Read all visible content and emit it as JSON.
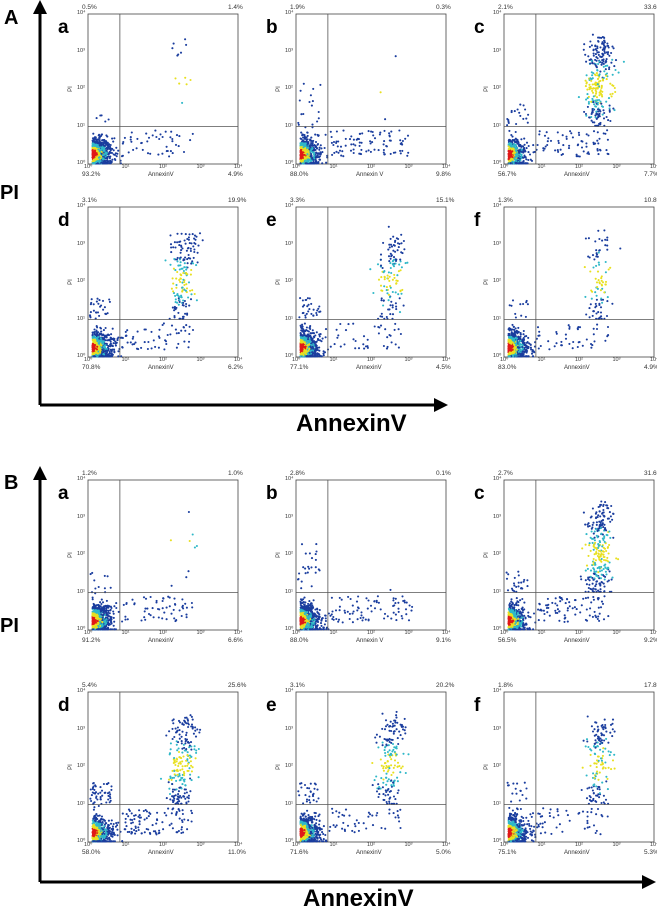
{
  "sections": [
    {
      "label": "A",
      "ylabel": "PI",
      "xlabel": "AnnexinV",
      "panels": [
        {
          "letter": "a",
          "ul": "0.5%",
          "ur": "1.4%",
          "ll": "93.2%",
          "lr": "4.9%",
          "xlabel": "AnnexinV"
        },
        {
          "letter": "b",
          "ul": "1.9%",
          "ur": "0.3%",
          "ll": "88.0%",
          "lr": "9.8%",
          "xlabel": "Annexin V"
        },
        {
          "letter": "c",
          "ul": "2.1%",
          "ur": "33.6%",
          "ll": "56.7%",
          "lr": "7.7%",
          "xlabel": "AnnexinV"
        },
        {
          "letter": "d",
          "ul": "3.1%",
          "ur": "19.9%",
          "ll": "70.8%",
          "lr": "6.2%",
          "xlabel": "AnnexinV"
        },
        {
          "letter": "e",
          "ul": "3.3%",
          "ur": "15.1%",
          "ll": "77.1%",
          "lr": "4.5%",
          "xlabel": "AnnexinV"
        },
        {
          "letter": "f",
          "ul": "1.3%",
          "ur": "10.8%",
          "ll": "83.0%",
          "lr": "4.9%",
          "xlabel": "AnnexinV"
        }
      ]
    },
    {
      "label": "B",
      "ylabel": "PI",
      "xlabel": "AnnexinV",
      "panels": [
        {
          "letter": "a",
          "ul": "1.2%",
          "ur": "1.0%",
          "ll": "91.2%",
          "lr": "6.6%",
          "xlabel": "AnnexinV"
        },
        {
          "letter": "b",
          "ul": "2.8%",
          "ur": "0.1%",
          "ll": "88.0%",
          "lr": "9.1%",
          "xlabel": "Annexin V"
        },
        {
          "letter": "c",
          "ul": "2.7%",
          "ur": "31.6%",
          "ll": "56.5%",
          "lr": "9.2%",
          "xlabel": "AnnexinV"
        },
        {
          "letter": "d",
          "ul": "5.4%",
          "ur": "25.6%",
          "ll": "58.0%",
          "lr": "11.0%",
          "xlabel": "AnnexinV"
        },
        {
          "letter": "e",
          "ul": "3.1%",
          "ur": "20.2%",
          "ll": "71.6%",
          "lr": "5.0%",
          "xlabel": "AnnexinV"
        },
        {
          "letter": "f",
          "ul": "1.8%",
          "ur": "17.8%",
          "ll": "75.1%",
          "lr": "5.3%",
          "xlabel": "AnnexinV"
        }
      ]
    }
  ],
  "chart_data": {
    "type": "scatter",
    "panel_ylabel": "PI",
    "x_ticks": [
      "10⁰",
      "10¹",
      "10²",
      "10³",
      "10⁴"
    ],
    "y_ticks": [
      "10⁰",
      "10¹",
      "10²",
      "10³",
      "10⁴"
    ],
    "xlim": [
      0,
      4
    ],
    "ylim": [
      0,
      4
    ],
    "quadrant_gate": {
      "x": 0.85,
      "y": 1.0
    },
    "scale": "log",
    "colors": {
      "low": "#1a3d9e",
      "mid": "#2fb8c8",
      "high": "#e8e020",
      "peak": "#e01818"
    },
    "series": [
      {
        "name": "A-a",
        "quadrants": {
          "ul": 0.5,
          "ur": 1.4,
          "ll": 93.2,
          "lr": 4.9
        }
      },
      {
        "name": "A-b",
        "quadrants": {
          "ul": 1.9,
          "ur": 0.3,
          "ll": 88.0,
          "lr": 9.8
        }
      },
      {
        "name": "A-c",
        "quadrants": {
          "ul": 2.1,
          "ur": 33.6,
          "ll": 56.7,
          "lr": 7.7
        }
      },
      {
        "name": "A-d",
        "quadrants": {
          "ul": 3.1,
          "ur": 19.9,
          "ll": 70.8,
          "lr": 6.2
        }
      },
      {
        "name": "A-e",
        "quadrants": {
          "ul": 3.3,
          "ur": 15.1,
          "ll": 77.1,
          "lr": 4.5
        }
      },
      {
        "name": "A-f",
        "quadrants": {
          "ul": 1.3,
          "ur": 10.8,
          "ll": 83.0,
          "lr": 4.9
        }
      },
      {
        "name": "B-a",
        "quadrants": {
          "ul": 1.2,
          "ur": 1.0,
          "ll": 91.2,
          "lr": 6.6
        }
      },
      {
        "name": "B-b",
        "quadrants": {
          "ul": 2.8,
          "ur": 0.1,
          "ll": 88.0,
          "lr": 9.1
        }
      },
      {
        "name": "B-c",
        "quadrants": {
          "ul": 2.7,
          "ur": 31.6,
          "ll": 56.5,
          "lr": 9.2
        }
      },
      {
        "name": "B-d",
        "quadrants": {
          "ul": 5.4,
          "ur": 25.6,
          "ll": 58.0,
          "lr": 11.0
        }
      },
      {
        "name": "B-e",
        "quadrants": {
          "ul": 3.1,
          "ur": 20.2,
          "ll": 71.6,
          "lr": 5.0
        }
      },
      {
        "name": "B-f",
        "quadrants": {
          "ul": 1.8,
          "ur": 17.8,
          "ll": 75.1,
          "lr": 5.3
        }
      }
    ]
  }
}
